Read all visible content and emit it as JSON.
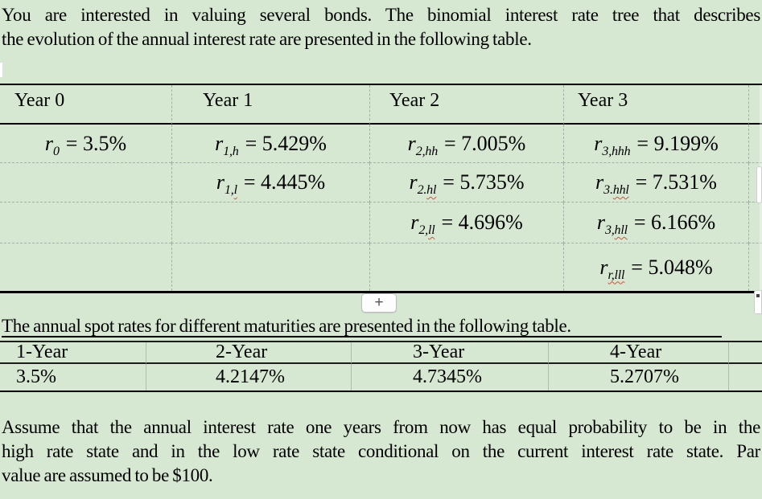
{
  "page": {
    "background_color": "#d6e8d2",
    "grid_dash_color": "#a2b2a2",
    "squiggle_color": "#e04a38",
    "border_color": "#000000"
  },
  "paragraphs": {
    "p1": {
      "lines": [
        "You are interested in valuing several bonds. The binomial interest rate tree that describes",
        "the evolution of the annual interest rate are presented in the following table."
      ]
    },
    "p2": {
      "text": "The annual spot rates for different maturities are presented in the following table."
    },
    "p3": {
      "lines": [
        "Assume that the annual interest rate one years from now has equal probability to be in the",
        "high rate state and in the low rate state conditional on the current interest rate state. Par",
        "value are assumed to be $100."
      ]
    }
  },
  "tree_table": {
    "headers": [
      "Year 0",
      "Year 1",
      "Year 2",
      "Year 3"
    ],
    "rows": [
      [
        {
          "base": "r",
          "sub": "0",
          "flag": "",
          "value": "= 3.5%"
        },
        {
          "base": "r",
          "sub": "1,h",
          "flag": "",
          "value": "= 5.429%"
        },
        {
          "base": "r",
          "sub": "2,hh",
          "flag": "",
          "value": "= 7.005%"
        },
        {
          "base": "r",
          "sub": "3,hhh",
          "flag": "",
          "value": "= 9.199%"
        }
      ],
      [
        null,
        {
          "base": "r",
          "sub": "1,",
          "flag": "l",
          "value": "= 4.445%"
        },
        {
          "base": "r",
          "sub": "2.",
          "flag": "hl",
          "value": "= 5.735%"
        },
        {
          "base": "r",
          "sub": "3.",
          "flag": "hhl",
          "value": "= 7.531%"
        }
      ],
      [
        null,
        null,
        {
          "base": "r",
          "sub": "2,",
          "flag": "ll",
          "value": "= 4.696%"
        },
        {
          "base": "r",
          "sub": "3,",
          "flag": "hll",
          "value": "= 6.166%"
        }
      ],
      [
        null,
        null,
        null,
        {
          "base": "r",
          "sub": "",
          "flag": "r,lll",
          "value": "= 5.048%"
        }
      ]
    ],
    "add_row_button_label": "+"
  },
  "spot_table": {
    "headers": [
      "1-Year",
      "2-Year",
      "3-Year",
      "4-Year"
    ],
    "values": [
      "3.5%",
      "4.2147%",
      "4.7345%",
      "5.2707%"
    ]
  },
  "icons": {
    "plus_icon": "+"
  }
}
